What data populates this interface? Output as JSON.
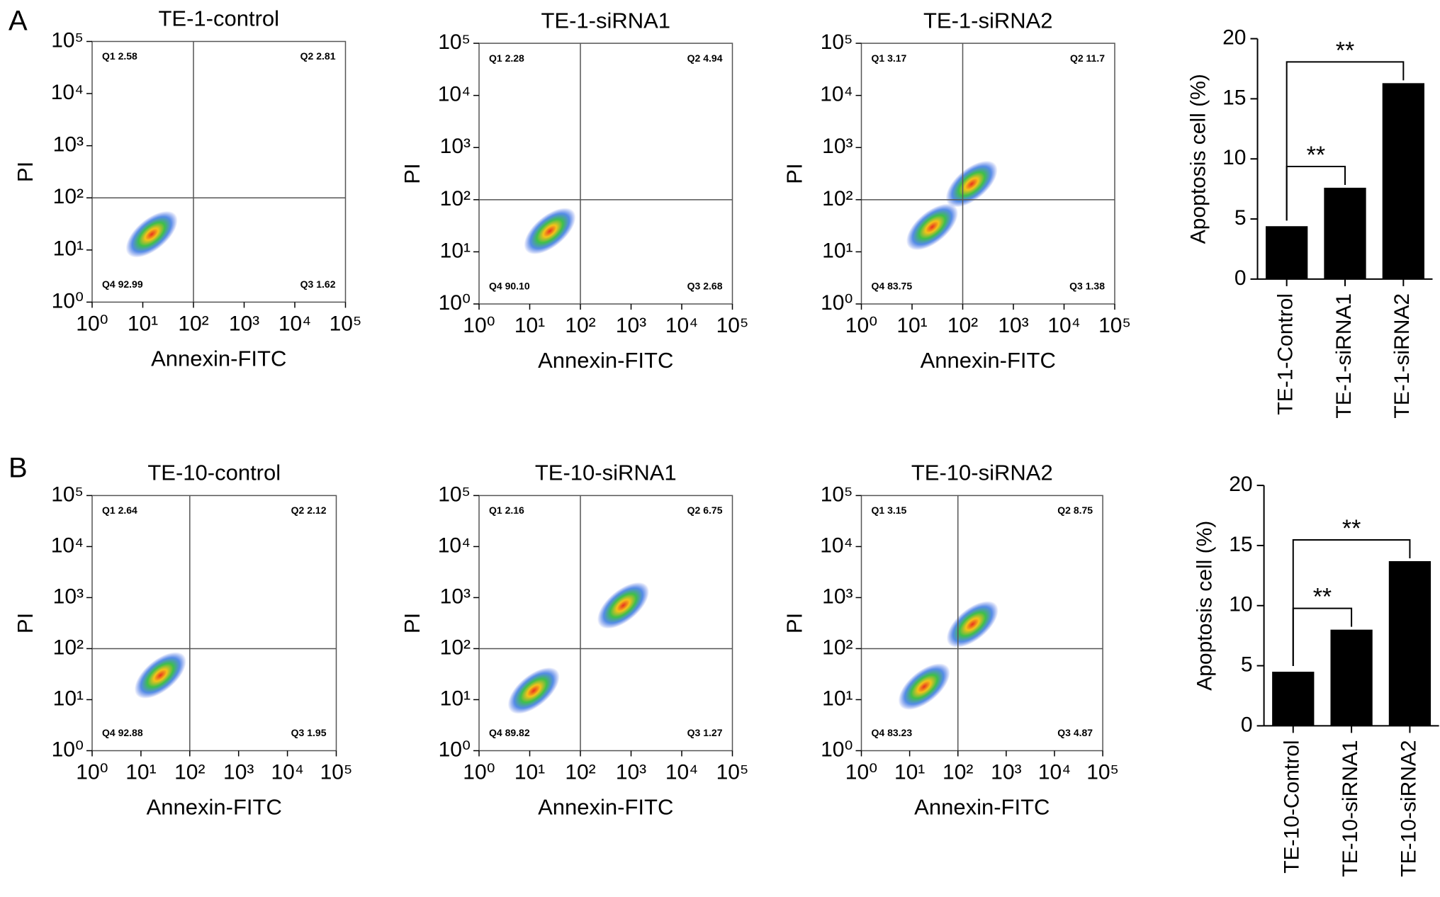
{
  "panels": [
    "A",
    "B"
  ],
  "chart_data": [
    {
      "type": "flow",
      "title": "TE-1-control",
      "xlabel": "Annexin-FITC",
      "ylabel": "PI",
      "log_scale": true,
      "xlim": [
        1,
        100000
      ],
      "ylim": [
        1,
        100000
      ],
      "xticks": [
        {
          "value": 1,
          "label": "10⁰"
        },
        {
          "value": 10,
          "label": "10¹"
        },
        {
          "value": 100,
          "label": "10²"
        },
        {
          "value": 1000,
          "label": "10³"
        },
        {
          "value": 10000,
          "label": "10⁴"
        },
        {
          "value": 100000,
          "label": "10⁵"
        }
      ],
      "yticks": [
        {
          "value": 1,
          "label": "10⁰"
        },
        {
          "value": 10,
          "label": "10¹"
        },
        {
          "value": 100,
          "label": "10²"
        },
        {
          "value": 1000,
          "label": "10³"
        },
        {
          "value": 10000,
          "label": "10⁴"
        },
        {
          "value": 100000,
          "label": "10⁵"
        }
      ],
      "gate": {
        "x": 100,
        "y": 100
      },
      "quadrant_labels": [
        "Q1 2.58",
        "Q2 2.81",
        "Q3 1.62",
        "Q4 92.99"
      ],
      "clusters": [
        {
          "x": 15,
          "y": 20
        }
      ]
    },
    {
      "type": "flow",
      "title": "TE-1-siRNA1",
      "xlabel": "Annexin-FITC",
      "ylabel": "PI",
      "log_scale": true,
      "xlim": [
        1,
        100000
      ],
      "ylim": [
        1,
        100000
      ],
      "xticks": [
        {
          "value": 1,
          "label": "10⁰"
        },
        {
          "value": 10,
          "label": "10¹"
        },
        {
          "value": 100,
          "label": "10²"
        },
        {
          "value": 1000,
          "label": "10³"
        },
        {
          "value": 10000,
          "label": "10⁴"
        },
        {
          "value": 100000,
          "label": "10⁵"
        }
      ],
      "yticks": [
        {
          "value": 1,
          "label": "10⁰"
        },
        {
          "value": 10,
          "label": "10¹"
        },
        {
          "value": 100,
          "label": "10²"
        },
        {
          "value": 1000,
          "label": "10³"
        },
        {
          "value": 10000,
          "label": "10⁴"
        },
        {
          "value": 100000,
          "label": "10⁵"
        }
      ],
      "gate": {
        "x": 100,
        "y": 100
      },
      "quadrant_labels": [
        "Q1 2.28",
        "Q2 4.94",
        "Q3 2.68",
        "Q4 90.10"
      ],
      "clusters": [
        {
          "x": 25,
          "y": 25
        }
      ]
    },
    {
      "type": "flow",
      "title": "TE-1-siRNA2",
      "xlabel": "Annexin-FITC",
      "ylabel": "PI",
      "log_scale": true,
      "xlim": [
        1,
        100000
      ],
      "ylim": [
        1,
        100000
      ],
      "xticks": [
        {
          "value": 1,
          "label": "10⁰"
        },
        {
          "value": 10,
          "label": "10¹"
        },
        {
          "value": 100,
          "label": "10²"
        },
        {
          "value": 1000,
          "label": "10³"
        },
        {
          "value": 10000,
          "label": "10⁴"
        },
        {
          "value": 100000,
          "label": "10⁵"
        }
      ],
      "yticks": [
        {
          "value": 1,
          "label": "10⁰"
        },
        {
          "value": 10,
          "label": "10¹"
        },
        {
          "value": 100,
          "label": "10²"
        },
        {
          "value": 1000,
          "label": "10³"
        },
        {
          "value": 10000,
          "label": "10⁴"
        },
        {
          "value": 100000,
          "label": "10⁵"
        }
      ],
      "gate": {
        "x": 100,
        "y": 100
      },
      "quadrant_labels": [
        "Q1 3.17",
        "Q2 11.7",
        "Q3 1.38",
        "Q4 83.75"
      ],
      "clusters": [
        {
          "x": 25,
          "y": 30
        },
        {
          "x": 150,
          "y": 200
        }
      ]
    },
    {
      "type": "bar",
      "ylabel": "Apoptosis cell (%)",
      "categories": [
        "TE-1-Control",
        "TE-1-siRNA1",
        "TE-1-siRNA2"
      ],
      "values": [
        4.4,
        7.6,
        16.3
      ],
      "color": "#000000",
      "ylim": [
        0,
        20
      ],
      "yticks": [
        0,
        5,
        10,
        15,
        20
      ],
      "annotations": [
        {
          "label": "**",
          "between": [
            "TE-1-Control",
            "TE-1-siRNA1"
          ]
        },
        {
          "label": "**",
          "between": [
            "TE-1-Control",
            "TE-1-siRNA2"
          ]
        }
      ]
    },
    {
      "type": "flow",
      "title": "TE-10-control",
      "xlabel": "Annexin-FITC",
      "ylabel": "PI",
      "log_scale": true,
      "xlim": [
        1,
        100000
      ],
      "ylim": [
        1,
        100000
      ],
      "xticks": [
        {
          "value": 1,
          "label": "10⁰"
        },
        {
          "value": 10,
          "label": "10¹"
        },
        {
          "value": 100,
          "label": "10²"
        },
        {
          "value": 1000,
          "label": "10³"
        },
        {
          "value": 10000,
          "label": "10⁴"
        },
        {
          "value": 100000,
          "label": "10⁵"
        }
      ],
      "yticks": [
        {
          "value": 1,
          "label": "10⁰"
        },
        {
          "value": 10,
          "label": "10¹"
        },
        {
          "value": 100,
          "label": "10²"
        },
        {
          "value": 1000,
          "label": "10³"
        },
        {
          "value": 10000,
          "label": "10⁴"
        },
        {
          "value": 100000,
          "label": "10⁵"
        }
      ],
      "gate": {
        "x": 100,
        "y": 100
      },
      "quadrant_labels": [
        "Q1 2.64",
        "Q2 2.12",
        "Q3 1.95",
        "Q4 92.88"
      ],
      "clusters": [
        {
          "x": 25,
          "y": 30
        }
      ]
    },
    {
      "type": "flow",
      "title": "TE-10-siRNA1",
      "xlabel": "Annexin-FITC",
      "ylabel": "PI",
      "log_scale": true,
      "xlim": [
        1,
        100000
      ],
      "ylim": [
        1,
        100000
      ],
      "xticks": [
        {
          "value": 1,
          "label": "10⁰"
        },
        {
          "value": 10,
          "label": "10¹"
        },
        {
          "value": 100,
          "label": "10²"
        },
        {
          "value": 1000,
          "label": "10³"
        },
        {
          "value": 10000,
          "label": "10⁴"
        },
        {
          "value": 100000,
          "label": "10⁵"
        }
      ],
      "yticks": [
        {
          "value": 1,
          "label": "10⁰"
        },
        {
          "value": 10,
          "label": "10¹"
        },
        {
          "value": 100,
          "label": "10²"
        },
        {
          "value": 1000,
          "label": "10³"
        },
        {
          "value": 10000,
          "label": "10⁴"
        },
        {
          "value": 100000,
          "label": "10⁵"
        }
      ],
      "gate": {
        "x": 100,
        "y": 100
      },
      "quadrant_labels": [
        "Q1 2.16",
        "Q2 6.75",
        "Q3 1.27",
        "Q4 89.82"
      ],
      "clusters": [
        {
          "x": 12,
          "y": 15
        },
        {
          "x": 700,
          "y": 700
        }
      ]
    },
    {
      "type": "flow",
      "title": "TE-10-siRNA2",
      "xlabel": "Annexin-FITC",
      "ylabel": "PI",
      "log_scale": true,
      "xlim": [
        1,
        100000
      ],
      "ylim": [
        1,
        100000
      ],
      "xticks": [
        {
          "value": 1,
          "label": "10⁰"
        },
        {
          "value": 10,
          "label": "10¹"
        },
        {
          "value": 100,
          "label": "10²"
        },
        {
          "value": 1000,
          "label": "10³"
        },
        {
          "value": 10000,
          "label": "10⁴"
        },
        {
          "value": 100000,
          "label": "10⁵"
        }
      ],
      "yticks": [
        {
          "value": 1,
          "label": "10⁰"
        },
        {
          "value": 10,
          "label": "10¹"
        },
        {
          "value": 100,
          "label": "10²"
        },
        {
          "value": 1000,
          "label": "10³"
        },
        {
          "value": 10000,
          "label": "10⁴"
        },
        {
          "value": 100000,
          "label": "10⁵"
        }
      ],
      "gate": {
        "x": 100,
        "y": 100
      },
      "quadrant_labels": [
        "Q1 3.15",
        "Q2 8.75",
        "Q3 4.87",
        "Q4 83.23"
      ],
      "clusters": [
        {
          "x": 20,
          "y": 18
        },
        {
          "x": 200,
          "y": 300
        }
      ]
    },
    {
      "type": "bar",
      "ylabel": "Apoptosis cell (%)",
      "categories": [
        "TE-10-Control",
        "TE-10-siRNA1",
        "TE-10-siRNA2"
      ],
      "values": [
        4.5,
        8.0,
        13.7
      ],
      "color": "#000000",
      "ylim": [
        0,
        20
      ],
      "yticks": [
        0,
        5,
        10,
        15,
        20
      ],
      "annotations": [
        {
          "label": "**",
          "between": [
            "TE-10-Control",
            "TE-10-siRNA1"
          ]
        },
        {
          "label": "**",
          "between": [
            "TE-10-Control",
            "TE-10-siRNA2"
          ]
        }
      ]
    }
  ]
}
